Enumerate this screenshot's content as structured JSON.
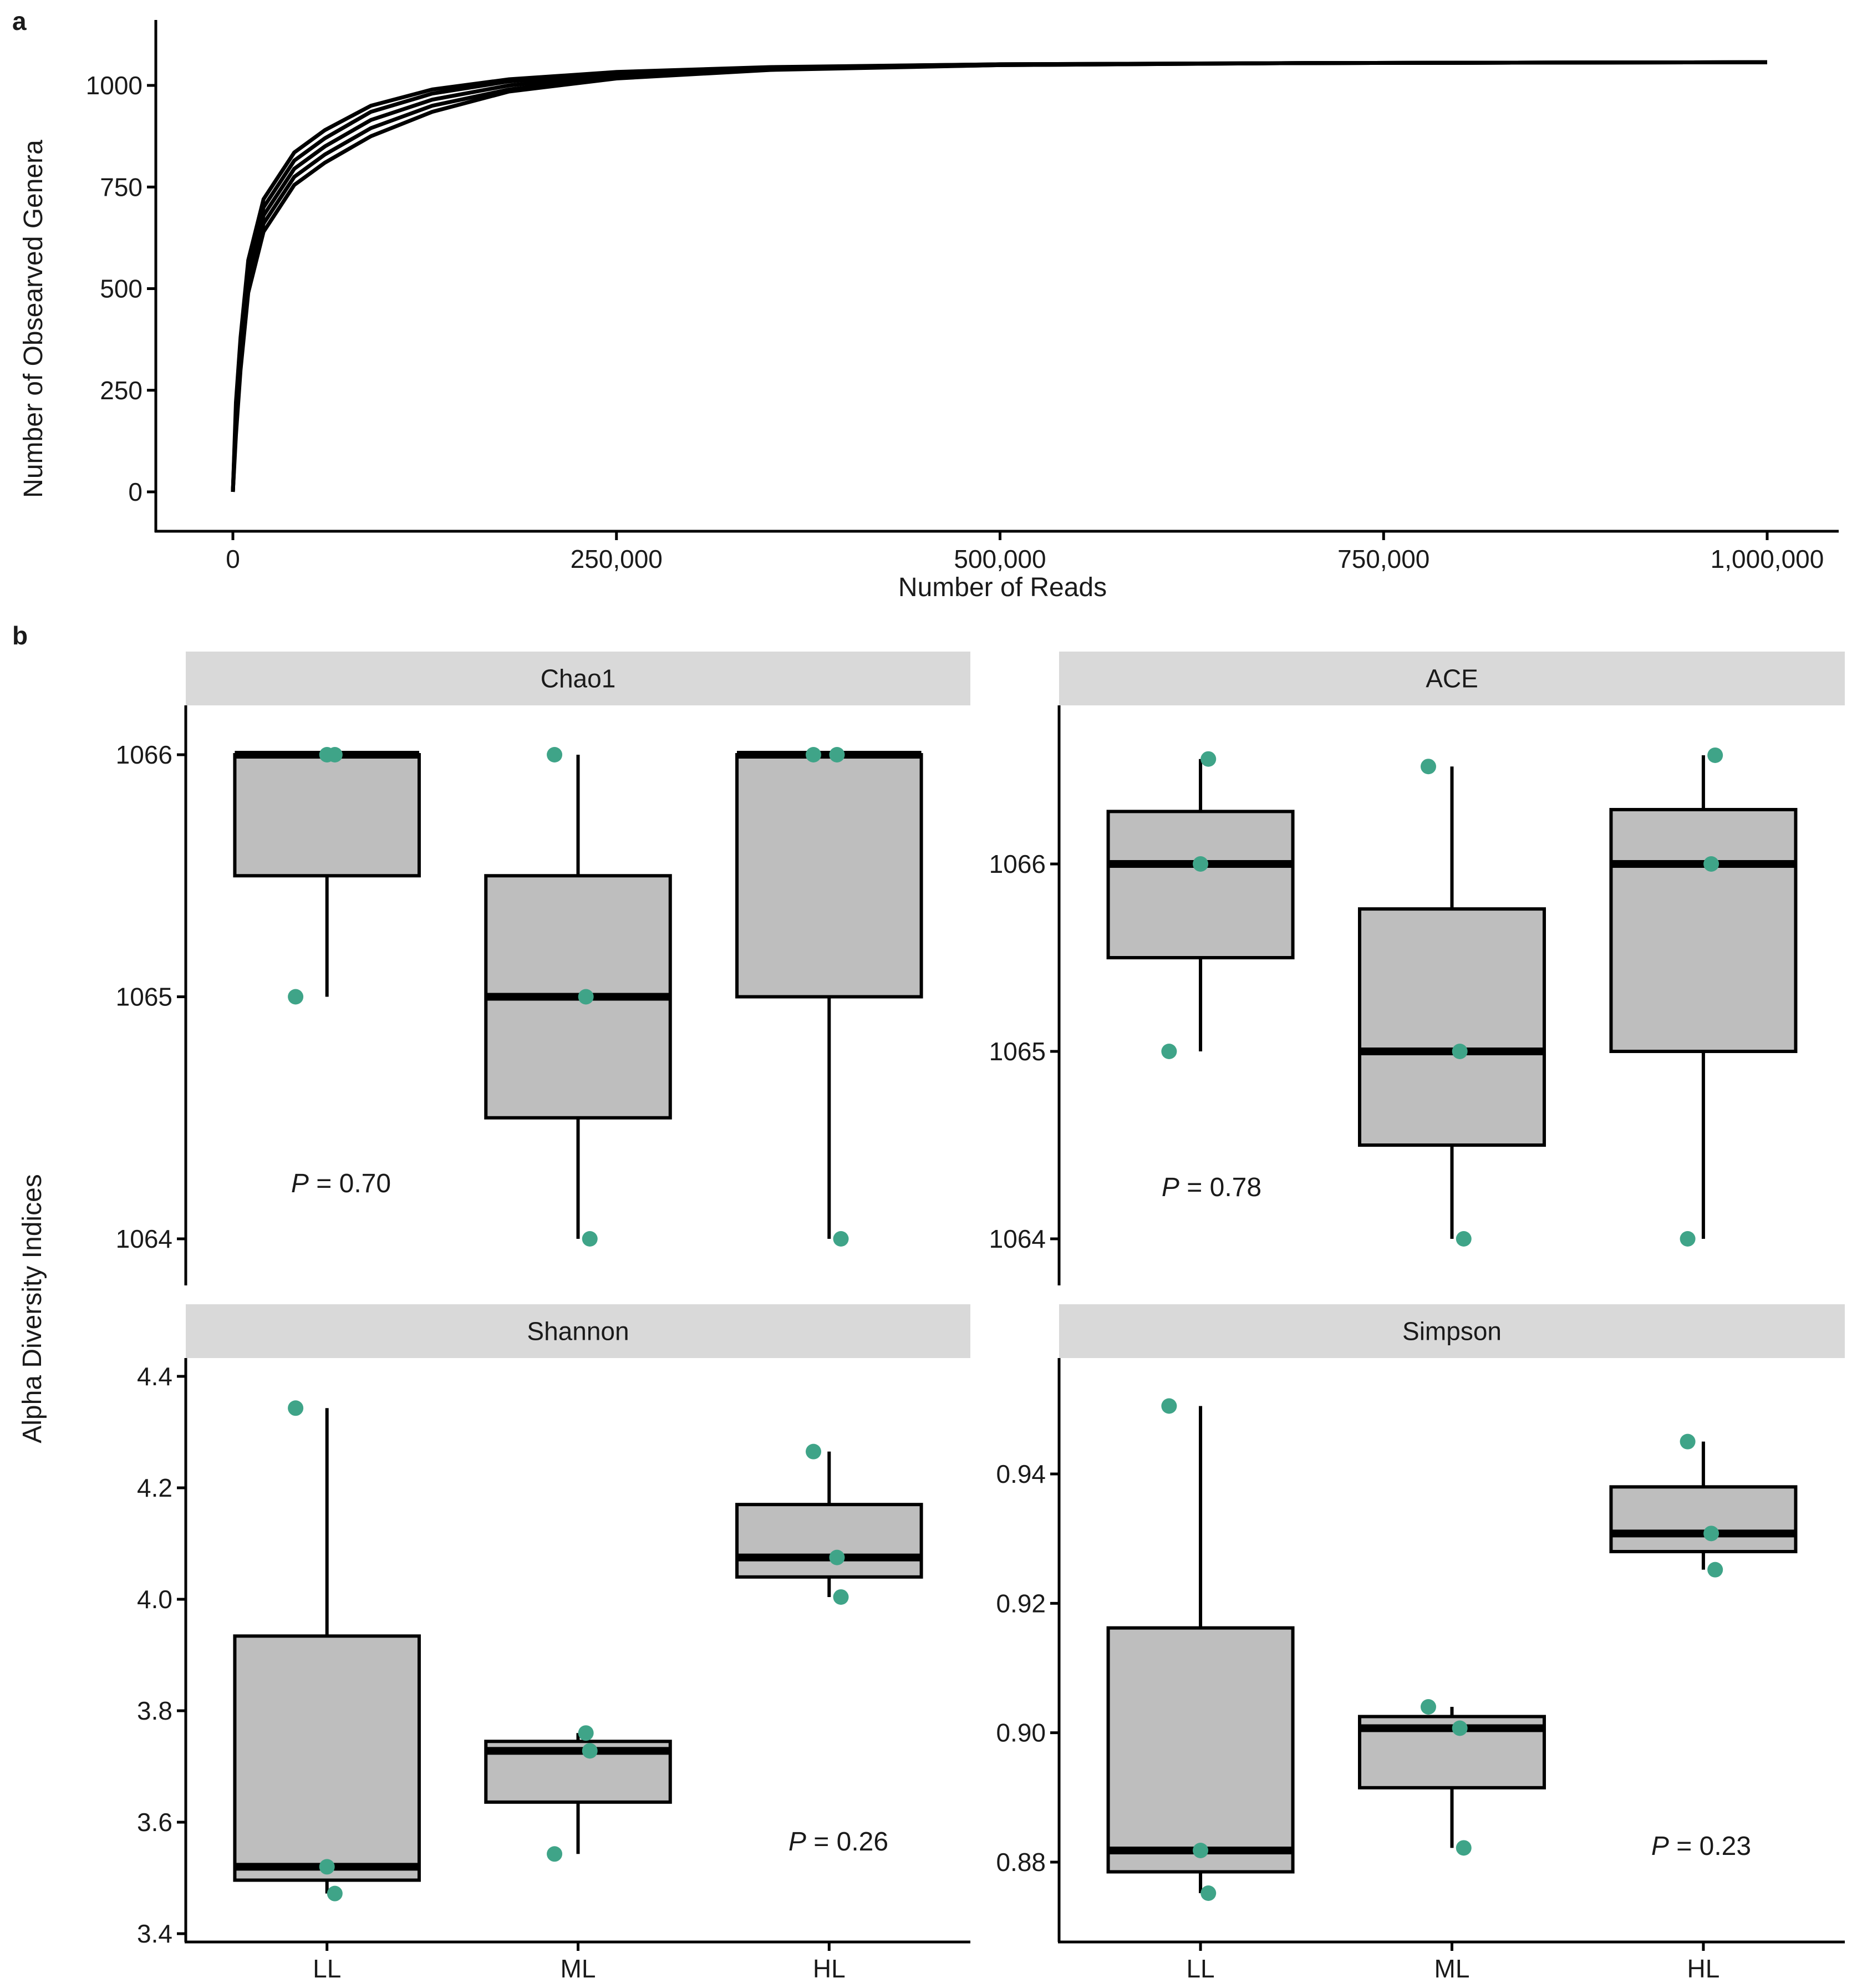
{
  "panel_a": {
    "tag": "a"
  },
  "panel_b": {
    "tag": "b",
    "shared_ylabel": "Alpha Diversity Indices",
    "p_label": "P",
    "p_eq": " = "
  },
  "colors": {
    "points": "#3fa488",
    "box_fill": "#bebebe",
    "strip_fill": "#d9d9d9",
    "curve": "#000000"
  },
  "chart_data": [
    {
      "type": "line",
      "xlabel": "Number of Reads",
      "ylabel": "Number of Obsearved Genera",
      "xlim": [
        -100000,
        1050000
      ],
      "ylim": [
        -100,
        1150
      ],
      "x_ticks": [
        0,
        250000,
        500000,
        750000,
        1000000
      ],
      "x_tick_labels": [
        "0",
        "250,000",
        "500,000",
        "750,000",
        "1,000,000"
      ],
      "y_ticks": [
        0,
        250,
        500,
        750,
        1000
      ],
      "y_tick_labels": [
        "0",
        "250",
        "500",
        "750",
        "1000"
      ],
      "grid": false,
      "legend": "none",
      "series": [
        {
          "x": [
            0,
            2000,
            5000,
            10000,
            20000,
            40000,
            60000,
            90000,
            130000,
            180000,
            250000,
            350000,
            500000,
            700000,
            1000000
          ],
          "y": [
            0,
            220,
            380,
            570,
            720,
            835,
            890,
            950,
            990,
            1015,
            1033,
            1045,
            1052,
            1055,
            1057
          ]
        },
        {
          "x": [
            0,
            2000,
            5000,
            10000,
            20000,
            40000,
            60000,
            90000,
            130000,
            180000,
            250000,
            350000,
            500000,
            700000,
            1000000
          ],
          "y": [
            0,
            200,
            360,
            550,
            700,
            815,
            870,
            935,
            980,
            1010,
            1030,
            1044,
            1052,
            1055,
            1057
          ]
        },
        {
          "x": [
            0,
            2000,
            5000,
            10000,
            20000,
            40000,
            60000,
            90000,
            130000,
            180000,
            250000,
            350000,
            500000,
            700000,
            1000000
          ],
          "y": [
            0,
            180,
            340,
            530,
            680,
            795,
            850,
            915,
            965,
            1000,
            1025,
            1042,
            1051,
            1055,
            1057
          ]
        },
        {
          "x": [
            0,
            2000,
            5000,
            10000,
            20000,
            40000,
            60000,
            90000,
            130000,
            180000,
            250000,
            350000,
            500000,
            700000,
            1000000
          ],
          "y": [
            0,
            160,
            320,
            510,
            660,
            775,
            830,
            895,
            950,
            990,
            1020,
            1040,
            1050,
            1055,
            1057
          ]
        },
        {
          "x": [
            0,
            2000,
            5000,
            10000,
            20000,
            40000,
            60000,
            90000,
            130000,
            180000,
            250000,
            350000,
            500000,
            700000,
            1000000
          ],
          "y": [
            0,
            140,
            300,
            490,
            640,
            755,
            810,
            875,
            935,
            985,
            1017,
            1038,
            1050,
            1055,
            1057
          ]
        }
      ]
    },
    {
      "type": "box",
      "title": "Chao1",
      "categories": [
        "LL",
        "ML",
        "HL"
      ],
      "ylim": [
        1063.8,
        1066.2
      ],
      "y_ticks": [
        1064,
        1065,
        1066
      ],
      "y_tick_labels": [
        "1064",
        "1065",
        "1066"
      ],
      "boxes": [
        {
          "q1": 1065.5,
          "median": 1066,
          "q3": 1066,
          "whisker_low": 1065,
          "whisker_high": 1066
        },
        {
          "q1": 1064.5,
          "median": 1065,
          "q3": 1065.5,
          "whisker_low": 1064,
          "whisker_high": 1066
        },
        {
          "q1": 1065,
          "median": 1066,
          "q3": 1066,
          "whisker_low": 1064,
          "whisker_high": 1066
        }
      ],
      "points": [
        [
          1065,
          1066,
          1066
        ],
        [
          1066,
          1065,
          1064
        ],
        [
          1066,
          1066,
          1064
        ]
      ],
      "p_value": "0.70"
    },
    {
      "type": "box",
      "title": "ACE",
      "categories": [
        "LL",
        "ML",
        "HL"
      ],
      "ylim": [
        1063.8,
        1066.85
      ],
      "y_ticks": [
        1064,
        1065,
        1066
      ],
      "y_tick_labels": [
        "1064",
        "1065",
        "1066"
      ],
      "boxes": [
        {
          "q1": 1065.5,
          "median": 1066,
          "q3": 1066.28,
          "whisker_low": 1065,
          "whisker_high": 1066.56
        },
        {
          "q1": 1064.5,
          "median": 1065,
          "q3": 1065.76,
          "whisker_low": 1064,
          "whisker_high": 1066.52
        },
        {
          "q1": 1065,
          "median": 1066,
          "q3": 1066.29,
          "whisker_low": 1064,
          "whisker_high": 1066.58
        }
      ],
      "points": [
        [
          1065,
          1066,
          1066.56
        ],
        [
          1066.52,
          1065,
          1064
        ],
        [
          1064,
          1066,
          1066.58
        ]
      ],
      "p_value": "0.78"
    },
    {
      "type": "box",
      "title": "Shannon",
      "categories": [
        "LL",
        "ML",
        "HL"
      ],
      "ylim": [
        3.4,
        4.43
      ],
      "y_ticks": [
        3.4,
        3.6,
        3.8,
        4.0,
        4.2,
        4.4
      ],
      "y_tick_labels": [
        "3.4",
        "3.6",
        "3.8",
        "4.0",
        "4.2",
        "4.4"
      ],
      "boxes": [
        {
          "q1": 3.496,
          "median": 3.52,
          "q3": 3.934,
          "whisker_low": 3.472,
          "whisker_high": 4.343
        },
        {
          "q1": 3.636,
          "median": 3.728,
          "q3": 3.745,
          "whisker_low": 3.543,
          "whisker_high": 3.76
        },
        {
          "q1": 4.04,
          "median": 4.075,
          "q3": 4.17,
          "whisker_low": 4.004,
          "whisker_high": 4.265
        }
      ],
      "points": [
        [
          4.343,
          3.52,
          3.472
        ],
        [
          3.543,
          3.76,
          3.728
        ],
        [
          4.265,
          4.075,
          4.004
        ]
      ],
      "p_value": "0.26"
    },
    {
      "type": "box",
      "title": "Simpson",
      "categories": [
        "LL",
        "ML",
        "HL"
      ],
      "ylim": [
        0.868,
        0.9585
      ],
      "y_ticks": [
        0.88,
        0.9,
        0.92,
        0.94
      ],
      "y_tick_labels": [
        "0.88",
        "0.90",
        "0.92",
        "0.94"
      ],
      "boxes": [
        {
          "q1": 0.8785,
          "median": 0.8818,
          "q3": 0.9162,
          "whisker_low": 0.8752,
          "whisker_high": 0.9505
        },
        {
          "q1": 0.8915,
          "median": 0.9007,
          "q3": 0.9025,
          "whisker_low": 0.8822,
          "whisker_high": 0.904
        },
        {
          "q1": 0.928,
          "median": 0.9308,
          "q3": 0.938,
          "whisker_low": 0.9252,
          "whisker_high": 0.945
        }
      ],
      "points": [
        [
          0.9505,
          0.8818,
          0.8752
        ],
        [
          0.904,
          0.9007,
          0.8822
        ],
        [
          0.945,
          0.9308,
          0.9252
        ]
      ],
      "p_value": "0.23"
    }
  ]
}
